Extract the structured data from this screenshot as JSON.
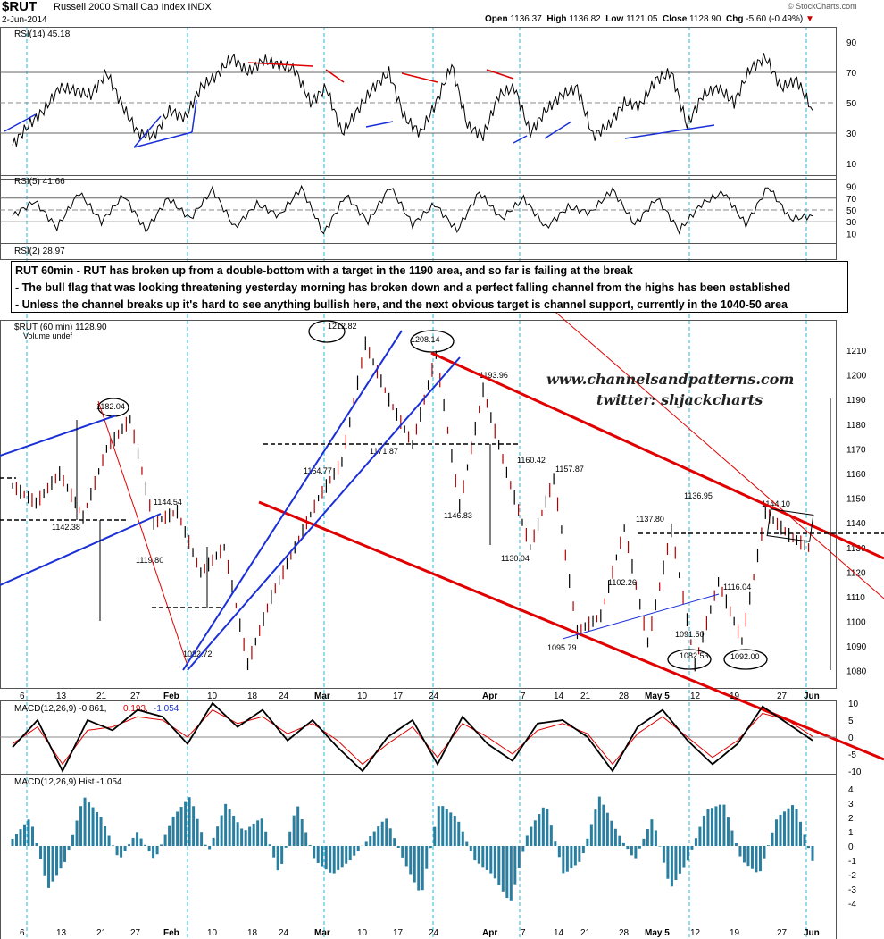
{
  "header": {
    "symbol": "$RUT",
    "name": "Russell 2000 Small Cap Index  INDX",
    "date": "2-Jun-2014",
    "open_label": "Open",
    "open": "1136.37",
    "high_label": "High",
    "high": "1136.82",
    "low_label": "Low",
    "low": "1121.05",
    "close_label": "Close",
    "close": "1128.90",
    "chg_label": "Chg",
    "chg": "-5.60 (-0.49%)",
    "logo": "© StockCharts.com"
  },
  "annotation": {
    "line1": "RUT 60min - RUT has broken up from a double-bottom with a target in the 1190 area, and so far is failing at the break",
    "line2": "- The bull flag that was looking threatening yesterday morning has broken down and a perfect falling channel from the highs has been established",
    "line3": "- Unless the channel breaks up it's hard to see anything bullish here, and the next obvious target is channel support, currently in the 1040-50 area"
  },
  "watermark": {
    "site": "www.channelsandpatterns.com",
    "twitter": "twitter: shjackcharts"
  },
  "colors": {
    "accent_red": "#e00000",
    "accent_blue": "#1a2fd8",
    "macd_hist": "#2a7fa0",
    "cycle_lines": "#29b8d8",
    "oversold_fill": "#b86a6a",
    "overbought_fill": "#888888"
  },
  "panels": {
    "rsi14": {
      "label": "RSI(14) 45.18",
      "ticks": [
        "90",
        "70",
        "50",
        "30",
        "10"
      ]
    },
    "rsi5": {
      "label": "RSI(5) 41.66",
      "ticks": [
        "90",
        "70",
        "50",
        "30",
        "10"
      ]
    },
    "rsi2": {
      "label": "RSI(2) 28.97"
    },
    "price": {
      "label": "$RUT (60 min) 1128.90",
      "sublabel": "Volume undef"
    },
    "macd": {
      "label_main": "MACD(12,26,9) -0.861,",
      "label_sig": "0.193,",
      "label_hist": "-1.054",
      "ticks": [
        "10",
        "5",
        "0",
        "-5",
        "-10"
      ]
    },
    "hist": {
      "label": "MACD(12,26,9) Hist -1.054",
      "ticks": [
        "4",
        "3",
        "2",
        "1",
        "0",
        "-1",
        "-2",
        "-3",
        "-4"
      ]
    }
  },
  "chart_data": {
    "type": "line",
    "title": "$RUT (60 min) 1128.90",
    "x_axis_labels": [
      "6",
      "13",
      "21",
      "27",
      "Feb",
      "10",
      "18",
      "24",
      "Mar",
      "10",
      "17",
      "24",
      "Apr",
      "7",
      "14",
      "21",
      "28",
      "May 5",
      "12",
      "19",
      "27",
      "Jun"
    ],
    "price_axis_ticks": [
      1080,
      1090,
      1100,
      1110,
      1120,
      1130,
      1140,
      1150,
      1160,
      1170,
      1180,
      1190,
      1200,
      1210
    ],
    "ylim": [
      1073,
      1218
    ],
    "price_swings": [
      1155,
      1148,
      1160,
      1142.38,
      1170,
      1182.04,
      1140,
      1144.54,
      1119.8,
      1130,
      1082.72,
      1110,
      1130,
      1150,
      1164.77,
      1212.82,
      1190,
      1171.87,
      1208.14,
      1146.83,
      1193.96,
      1160.42,
      1130.04,
      1157.87,
      1095.79,
      1102.26,
      1137.8,
      1091.5,
      1136.95,
      1082.53,
      1116.04,
      1092,
      1144.1,
      1135,
      1128.9
    ],
    "price_labels": [
      {
        "text": "1182.04",
        "v": 1182.04
      },
      {
        "text": "1142.38",
        "v": 1142.38
      },
      {
        "text": "1144.54",
        "v": 1144.54
      },
      {
        "text": "1119.80",
        "v": 1119.8
      },
      {
        "text": "1082.72",
        "v": 1082.72
      },
      {
        "text": "1164.77",
        "v": 1164.77
      },
      {
        "text": "1212.82",
        "v": 1212.82
      },
      {
        "text": "1171.87",
        "v": 1171.87
      },
      {
        "text": "1208.14",
        "v": 1208.14
      },
      {
        "text": "1146.83",
        "v": 1146.83
      },
      {
        "text": "1193.96",
        "v": 1193.96
      },
      {
        "text": "1160.42",
        "v": 1160.42
      },
      {
        "text": "1130.04",
        "v": 1130.04
      },
      {
        "text": "1157.87",
        "v": 1157.87
      },
      {
        "text": "1095.79",
        "v": 1095.79
      },
      {
        "text": "1102.26",
        "v": 1102.26
      },
      {
        "text": "1137.80",
        "v": 1137.8
      },
      {
        "text": "1091.50",
        "v": 1091.5
      },
      {
        "text": "1136.95",
        "v": 1136.95
      },
      {
        "text": "1082.53",
        "v": 1082.53
      },
      {
        "text": "1116.04",
        "v": 1116.04
      },
      {
        "text": "1092.00",
        "v": 1092.0
      },
      {
        "text": "1144.10",
        "v": 1144.1
      }
    ],
    "rsi14_swings": [
      22,
      35,
      45,
      60,
      58,
      55,
      70,
      48,
      30,
      28,
      45,
      40,
      60,
      68,
      80,
      70,
      78,
      75,
      72,
      50,
      60,
      30,
      45,
      60,
      70,
      40,
      30,
      50,
      75,
      35,
      28,
      55,
      60,
      30,
      45,
      55,
      60,
      28,
      35,
      50,
      48,
      65,
      70,
      35,
      55,
      60,
      50,
      72,
      80,
      60,
      65,
      45
    ],
    "rsi5_swings": [
      40,
      65,
      20,
      80,
      30,
      75,
      15,
      70,
      35,
      85,
      20,
      60,
      40,
      88,
      10,
      75,
      30,
      90,
      25,
      60,
      15,
      80,
      35,
      70,
      20,
      55,
      45,
      85,
      25,
      70,
      15,
      60,
      80,
      25,
      90,
      35,
      40
    ],
    "macd_line": [
      -3,
      5,
      -10,
      5,
      2,
      8,
      6,
      -2,
      10,
      3,
      8,
      -1,
      5,
      -3,
      -10,
      0,
      5,
      -8,
      6,
      -2,
      -7,
      4,
      5,
      0,
      -10,
      3,
      8,
      -1,
      -8,
      -2,
      9,
      4,
      -1
    ],
    "macd_signal": [
      -2,
      3,
      -8,
      2,
      3,
      6,
      5,
      0,
      8,
      4,
      6,
      1,
      4,
      -1,
      -8,
      -2,
      3,
      -6,
      4,
      0,
      -5,
      2,
      4,
      1,
      -8,
      1,
      6,
      0,
      -6,
      -1,
      7,
      5,
      0.19
    ],
    "macd_hist": [
      0.5,
      2,
      -3,
      -1,
      3.5,
      2,
      -1,
      1,
      -1,
      2,
      3.5,
      -0.5,
      3,
      1,
      2,
      -2,
      3,
      -1,
      -2,
      -1,
      0.5,
      2,
      -1,
      -3.5,
      3,
      2,
      -1,
      -2,
      -4,
      1,
      3,
      -2,
      -1,
      3.5,
      1,
      -1,
      2,
      -3,
      -1,
      2.5,
      3,
      -1,
      -2,
      2,
      3,
      -1.05
    ]
  }
}
